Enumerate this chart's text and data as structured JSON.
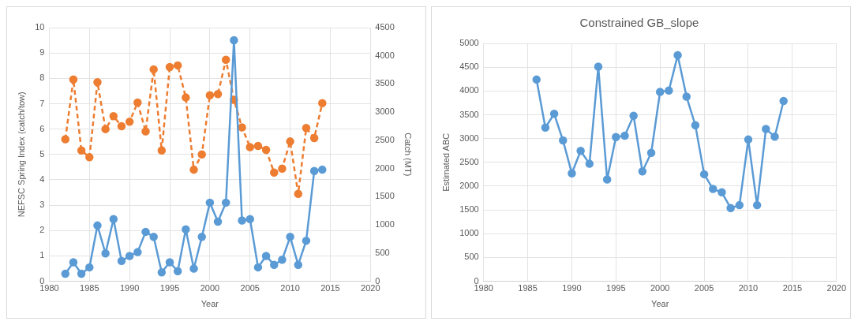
{
  "chart_data": [
    {
      "type": "line",
      "xlabel": "Year",
      "ylabel": "NEFSC Spring Index (catch/tow)",
      "y2label": "Catch (MT)",
      "x": [
        1982,
        1983,
        1984,
        1985,
        1986,
        1987,
        1988,
        1989,
        1990,
        1991,
        1992,
        1993,
        1994,
        1995,
        1996,
        1997,
        1998,
        1999,
        2000,
        2001,
        2002,
        2003,
        2004,
        2005,
        2006,
        2007,
        2008,
        2009,
        2010,
        2011,
        2012,
        2013,
        2014
      ],
      "xlim": [
        1980,
        2020
      ],
      "xticks": [
        1980,
        1985,
        1990,
        1995,
        2000,
        2005,
        2010,
        2015,
        2020
      ],
      "ylim": [
        0,
        10
      ],
      "yticks": [
        0,
        1,
        2,
        3,
        4,
        5,
        6,
        7,
        8,
        9,
        10
      ],
      "y2lim": [
        0,
        4500
      ],
      "y2ticks": [
        0,
        500,
        1000,
        1500,
        2000,
        2500,
        3000,
        3500,
        4000,
        4500
      ],
      "grid": true,
      "legend": false,
      "marker": "circle",
      "series": [
        {
          "color": "#5b9bd5",
          "line_style": "solid",
          "values": [
            0.3,
            0.75,
            0.3,
            0.55,
            2.2,
            1.1,
            2.45,
            0.8,
            1.0,
            1.15,
            1.95,
            1.75,
            0.35,
            0.75,
            0.4,
            2.05,
            0.5,
            1.75,
            3.1,
            2.35,
            3.1,
            9.5,
            2.4,
            2.45,
            0.55,
            1.0,
            0.65,
            0.85,
            1.75,
            0.65,
            1.6,
            4.35,
            4.4
          ]
        },
        {
          "color": "#ed7d31",
          "line_style": "dashed",
          "axis": "y2",
          "values": [
            2520,
            3580,
            2320,
            2200,
            3530,
            2700,
            2930,
            2750,
            2830,
            3170,
            2660,
            3760,
            2320,
            3800,
            3830,
            3260,
            1980,
            2250,
            3300,
            3320,
            3930,
            3220,
            2730,
            2380,
            2400,
            2330,
            1930,
            2000,
            2480,
            1550,
            2720,
            2540,
            3160
          ]
        }
      ]
    },
    {
      "type": "line",
      "title": "Constrained GB_slope",
      "xlabel": "Year",
      "ylabel": "Estimated ABC",
      "x": [
        1986,
        1987,
        1988,
        1989,
        1990,
        1991,
        1992,
        1993,
        1994,
        1995,
        1996,
        1997,
        1998,
        1999,
        2000,
        2001,
        2002,
        2003,
        2004,
        2005,
        2006,
        2007,
        2008,
        2009,
        2010,
        2011,
        2012,
        2013,
        2014
      ],
      "xlim": [
        1980,
        2020
      ],
      "xticks": [
        1980,
        1985,
        1990,
        1995,
        2000,
        2005,
        2010,
        2015,
        2020
      ],
      "ylim": [
        0,
        5000
      ],
      "yticks": [
        0,
        500,
        1000,
        1500,
        2000,
        2500,
        3000,
        3500,
        4000,
        4500,
        5000
      ],
      "grid": true,
      "legend": false,
      "marker": "circle",
      "series": [
        {
          "color": "#5b9bd5",
          "line_style": "solid",
          "values": [
            4240,
            3230,
            3520,
            2960,
            2270,
            2740,
            2470,
            4510,
            2140,
            3030,
            3060,
            3480,
            2310,
            2700,
            3980,
            4010,
            4750,
            3880,
            3280,
            2250,
            1940,
            1870,
            1540,
            1600,
            2980,
            1600,
            3200,
            3040,
            3790
          ]
        }
      ]
    }
  ]
}
